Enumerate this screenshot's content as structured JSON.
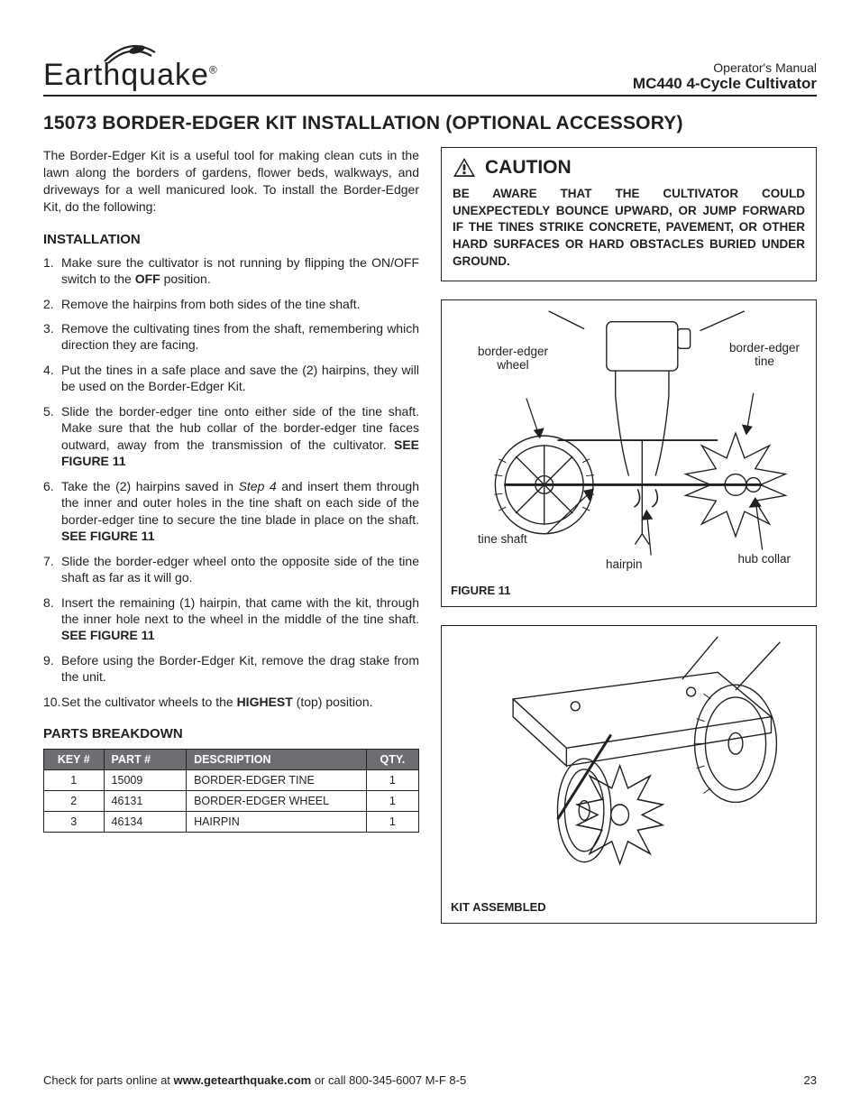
{
  "header": {
    "brand": "Earthquake",
    "reg": "®",
    "manual_type": "Operator's Manual",
    "product": "MC440 4-Cycle Cultivator"
  },
  "title": "15073 BORDER-EDGER KIT INSTALLATION (OPTIONAL ACCESSORY)",
  "intro": "The Border-Edger Kit is a useful tool for making clean cuts in the lawn along the borders of gardens, flower beds, walkways, and driveways for a well manicured look. To install the Border-Edger Kit, do the following:",
  "installation": {
    "heading": "INSTALLATION",
    "s1a": "Make sure the cultivator is not running by flipping the ON/OFF switch to the ",
    "s1b": "OFF",
    "s1c": " position.",
    "s2": "Remove the hairpins from both sides of the tine shaft.",
    "s3": "Remove the cultivating tines from the shaft, remembering which direction they are facing.",
    "s4": "Put the tines in a safe place and save the (2) hairpins, they will be used on the Border-Edger Kit.",
    "s5a": "Slide the border-edger tine onto either side of the tine shaft. Make sure that the hub collar of the border-edger tine faces outward, away from the transmission of the cultivator. ",
    "s5b": "SEE FIGURE 11",
    "s6a": "Take the (2) hairpins saved in ",
    "s6b": "Step 4",
    "s6c": " and insert them through the inner and outer holes in the tine shaft on each side of the border-edger tine to secure the tine blade in place on the shaft. ",
    "s6d": "SEE FIGURE 11",
    "s7": "Slide the border-edger wheel onto the opposite side of the tine shaft as far as it will go.",
    "s8a": "Insert the remaining (1) hairpin, that came with the kit, through the inner hole next to the wheel in the middle of the tine shaft. ",
    "s8b": "SEE FIGURE 11",
    "s9": "Before using the Border-Edger Kit, remove the drag stake from the unit.",
    "s10a": "Set the cultivator wheels to the ",
    "s10b": "HIGHEST",
    "s10c": " (top) position."
  },
  "parts": {
    "heading": "PARTS BREAKDOWN",
    "cols": {
      "c1": "KEY #",
      "c2": "PART #",
      "c3": "DESCRIPTION",
      "c4": "QTY."
    },
    "rows": [
      {
        "key": "1",
        "part": "15009",
        "desc": "BORDER-EDGER TINE",
        "qty": "1"
      },
      {
        "key": "2",
        "part": "46131",
        "desc": "BORDER-EDGER WHEEL",
        "qty": "1"
      },
      {
        "key": "3",
        "part": "46134",
        "desc": "HAIRPIN",
        "qty": "1"
      }
    ]
  },
  "caution": {
    "title": "CAUTION",
    "text": "BE AWARE THAT THE CULTIVATOR COULD UNEXPECTEDLY BOUNCE UPWARD, OR JUMP FORWARD IF THE TINES STRIKE CONCRETE, PAVEMENT, OR OTHER HARD SURFACES OR HARD OBSTACLES BURIED UNDER GROUND."
  },
  "figure11": {
    "caption": "FIGURE 11",
    "labels": {
      "wheel": "border-edger\nwheel",
      "tine": "border-edger\ntine",
      "shaft": "tine shaft",
      "hairpin": "hairpin",
      "collar": "hub collar"
    }
  },
  "figureKit": {
    "caption": "KIT ASSEMBLED"
  },
  "footer": {
    "left_a": "Check for parts online at ",
    "left_b": "www.getearthquake.com",
    "left_c": " or call 800-345-6007 M-F 8-5",
    "page": "23"
  },
  "style": {
    "text_color": "#231f20",
    "table_header_bg": "#6d6e71",
    "border_color": "#231f20"
  }
}
